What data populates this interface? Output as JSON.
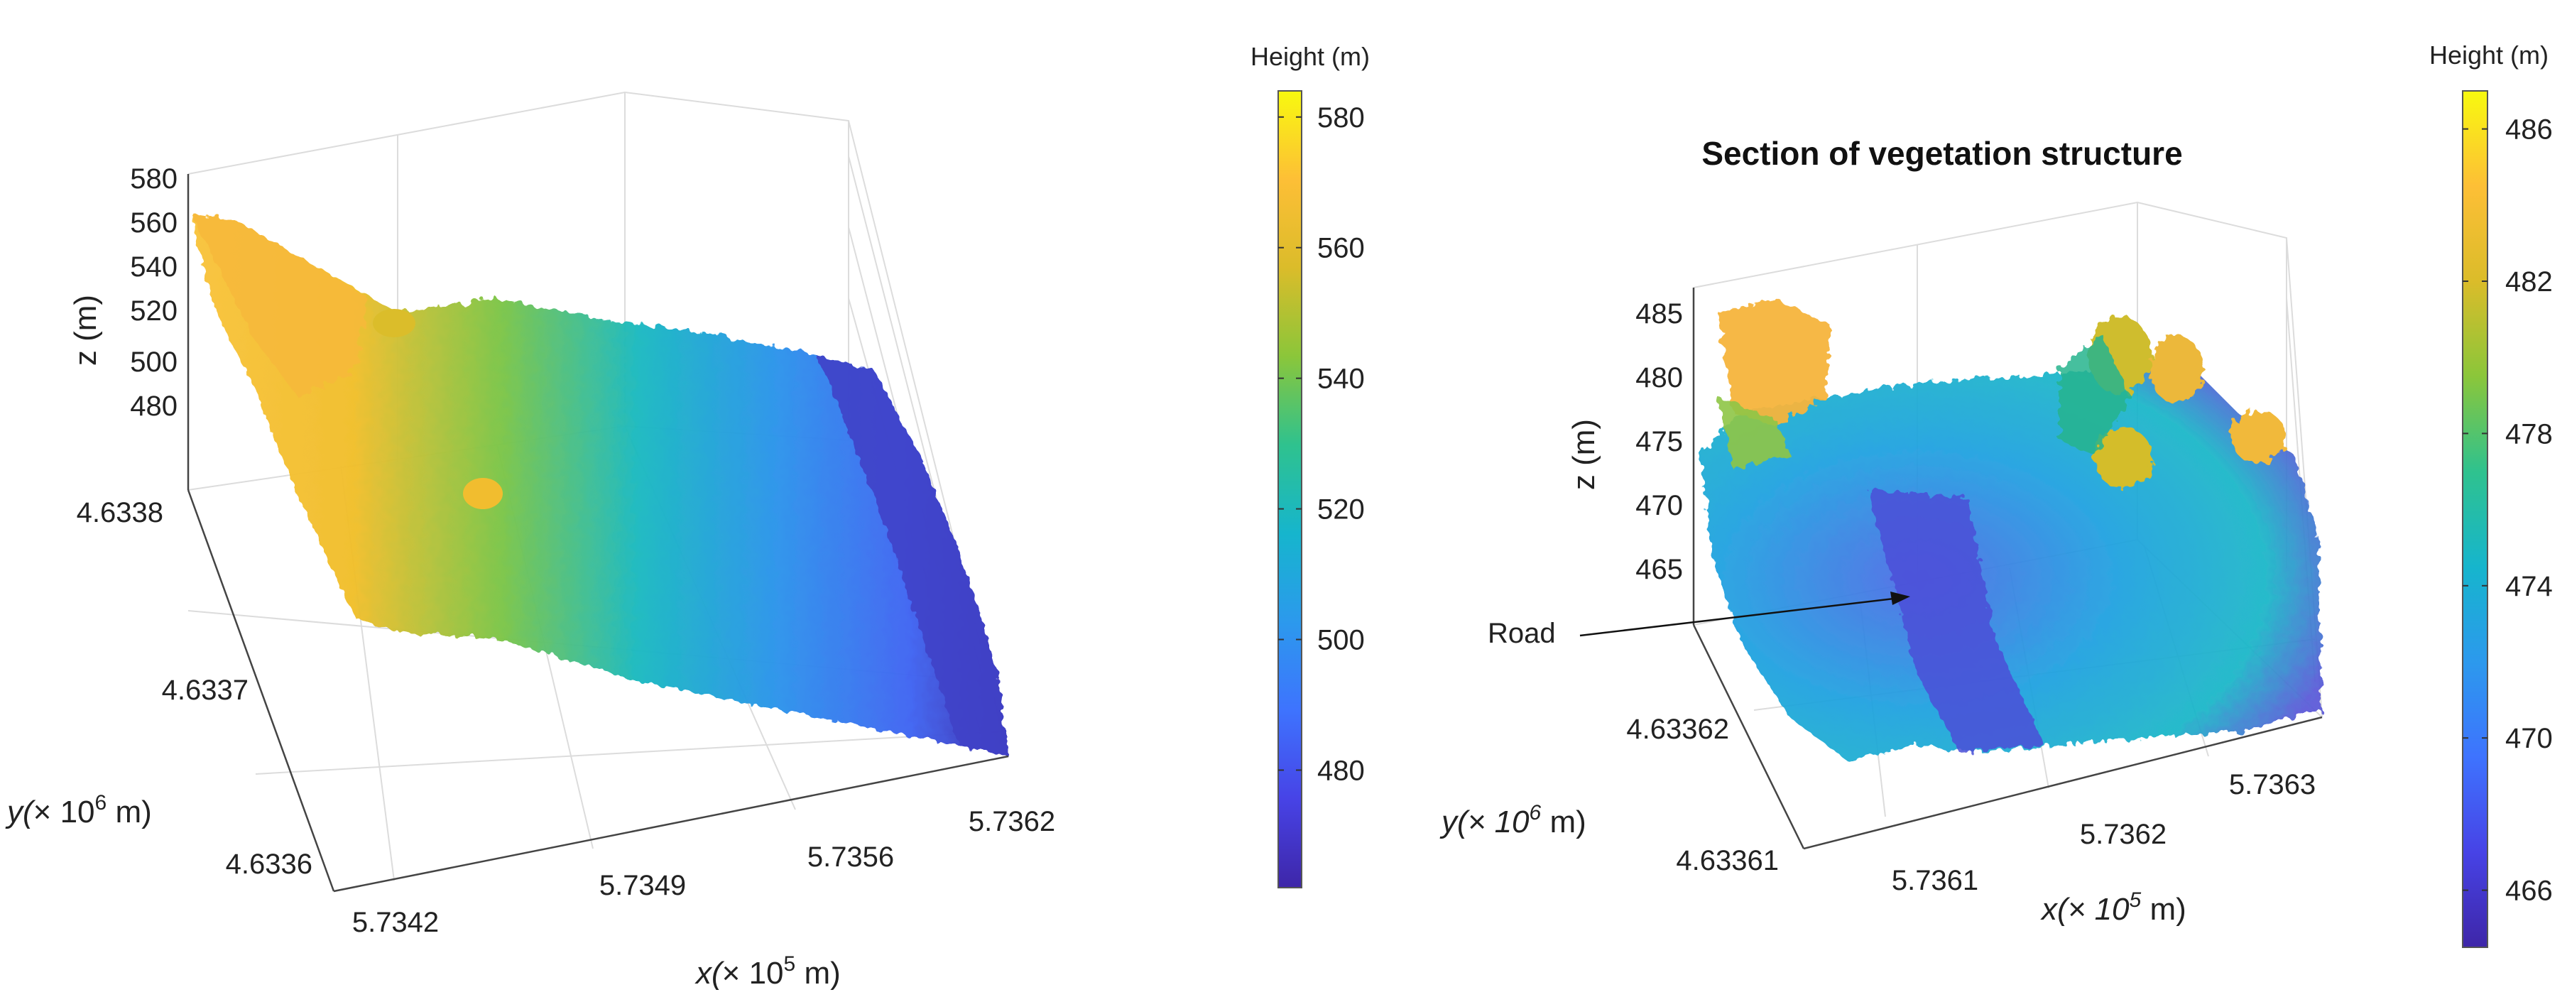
{
  "chart_data": [
    {
      "type": "3d-scatter",
      "title": "",
      "xlabel_prefix": "x(",
      "xlabel_unit": "× 10",
      "xlabel_exp": "5",
      "xlabel_suffix": " m)",
      "ylabel_prefix": "y(",
      "ylabel_unit": "× 10",
      "ylabel_exp": "6",
      "ylabel_suffix": " m)",
      "zlabel": "z (m)",
      "x_ticks": [
        "5.7342",
        "5.7349",
        "5.7356",
        "5.7362"
      ],
      "y_ticks": [
        "4.6336",
        "4.6337",
        "4.6338"
      ],
      "z_ticks": [
        "480",
        "500",
        "520",
        "540",
        "560",
        "580"
      ],
      "colorbar": {
        "title": "Height (m)",
        "range": [
          462,
          584
        ],
        "ticks": [
          "480",
          "500",
          "520",
          "540",
          "560",
          "580"
        ],
        "tick_values": [
          480,
          500,
          520,
          540,
          560,
          580
        ]
      }
    },
    {
      "type": "3d-scatter",
      "title": "Section of vegetation structure",
      "xlabel_prefix": "x(",
      "xlabel_unit": "× 10",
      "xlabel_exp": "5",
      "xlabel_suffix": " m)",
      "ylabel_prefix": "y(",
      "ylabel_unit": "× 10",
      "ylabel_exp": "6",
      "ylabel_suffix": " m)",
      "zlabel": "z (m)",
      "x_ticks": [
        "5.7361",
        "5.7362",
        "5.7363"
      ],
      "y_ticks": [
        "4.63361",
        "4.63362"
      ],
      "z_ticks": [
        "465",
        "470",
        "475",
        "480",
        "485"
      ],
      "annotation": "Road",
      "colorbar": {
        "title": "Height (m)",
        "range": [
          464.5,
          487
        ],
        "ticks": [
          "466",
          "470",
          "474",
          "478",
          "482",
          "486"
        ],
        "tick_values": [
          466,
          470,
          474,
          478,
          482,
          486
        ]
      }
    }
  ],
  "colormap": [
    "#3e26a8",
    "#4743e6",
    "#3e73fe",
    "#2c99ed",
    "#16b5cd",
    "#2fc28e",
    "#8bc63a",
    "#dbbc2a",
    "#fdbf36",
    "#f8f90f"
  ]
}
